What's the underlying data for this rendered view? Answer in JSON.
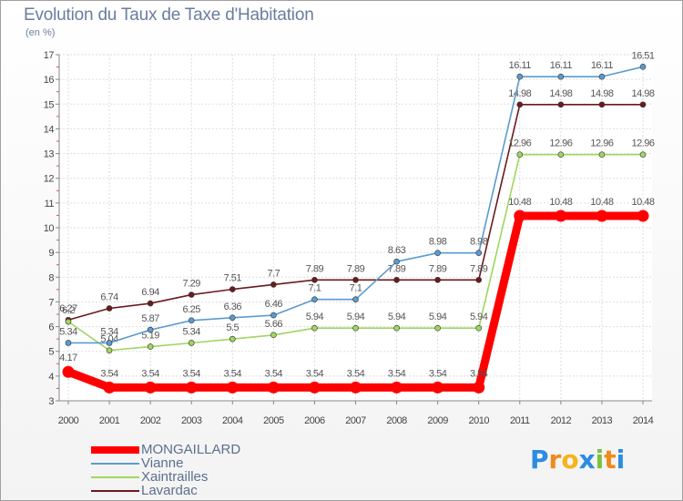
{
  "header": {
    "title": "Evolution du Taux de Taxe d'Habitation",
    "unit": "(en %)"
  },
  "chart_data": {
    "type": "line",
    "title": "Evolution du Taux de Taxe d'Habitation",
    "ylabel": "(en %)",
    "xlabel": "",
    "x": [
      2000,
      2001,
      2002,
      2003,
      2004,
      2005,
      2006,
      2007,
      2008,
      2009,
      2010,
      2011,
      2012,
      2013,
      2014
    ],
    "ylim": [
      3,
      17
    ],
    "yticks": [
      3,
      4,
      5,
      6,
      7,
      8,
      9,
      10,
      11,
      12,
      13,
      14,
      15,
      16,
      17
    ],
    "grid": true,
    "legend": "bottom-left",
    "series": [
      {
        "name": "Lavardac",
        "color": "#6b1a1e",
        "values": [
          6.27,
          6.74,
          6.94,
          7.29,
          7.51,
          7.7,
          7.89,
          7.89,
          7.89,
          7.89,
          7.89,
          14.98,
          14.98,
          14.98,
          14.98
        ]
      },
      {
        "name": "Xaintrailles",
        "color": "#9fd660",
        "values": [
          6.2,
          5.04,
          5.19,
          5.34,
          5.5,
          5.66,
          5.94,
          5.94,
          5.94,
          5.94,
          5.94,
          12.96,
          12.96,
          12.96,
          12.96
        ]
      },
      {
        "name": "Vianne",
        "color": "#5b9bd0",
        "values": [
          5.34,
          5.34,
          5.87,
          6.25,
          6.36,
          6.46,
          7.1,
          7.1,
          8.63,
          8.98,
          8.98,
          16.11,
          16.11,
          16.11,
          16.51
        ]
      },
      {
        "name": "MONGAILLARD",
        "color": "#ff0000",
        "values": [
          4.17,
          3.54,
          3.54,
          3.54,
          3.54,
          3.54,
          3.54,
          3.54,
          3.54,
          3.54,
          3.54,
          10.48,
          10.48,
          10.48,
          10.48
        ]
      }
    ]
  },
  "legend": [
    {
      "name": "MONGAILLARD",
      "color": "#ff0000",
      "thickness": "thick"
    },
    {
      "name": "Vianne",
      "color": "#5b9bd0",
      "thickness": "thin"
    },
    {
      "name": "Xaintrailles",
      "color": "#9fd660",
      "thickness": "thin"
    },
    {
      "name": "Lavardac",
      "color": "#6b1a1e",
      "thickness": "thin"
    }
  ],
  "logo": {
    "letters": [
      "P",
      "r",
      "o",
      "x",
      "i",
      "t",
      "i"
    ],
    "colors": [
      "#2d8be0",
      "#f08a1c",
      "#f4b41a",
      "#2d8be0",
      "#7cc242",
      "#f08a1c",
      "#2d8be0"
    ]
  }
}
